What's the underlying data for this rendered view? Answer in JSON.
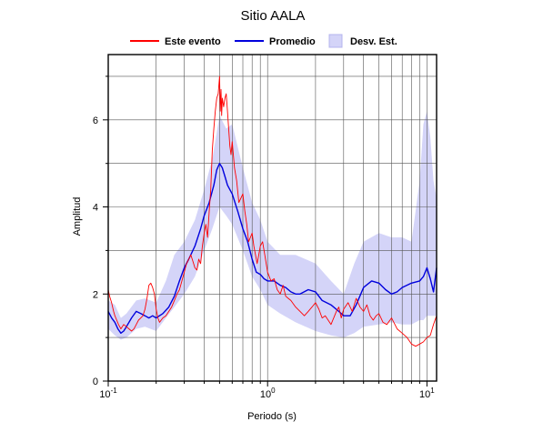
{
  "chart_data": {
    "type": "line",
    "title": "Sitio AALA",
    "xlabel": "Periodo (s)",
    "ylabel": "Amplitud",
    "x_scale": "log",
    "xlim": [
      0.1,
      11.5
    ],
    "ylim": [
      0,
      7.5
    ],
    "x_ticks": [
      {
        "value": 0.1,
        "base": "10",
        "exp": "-1"
      },
      {
        "value": 1,
        "base": "10",
        "exp": "0"
      },
      {
        "value": 10,
        "base": "10",
        "exp": "1"
      }
    ],
    "y_ticks": [
      0,
      2,
      4,
      6
    ],
    "grid": true,
    "legend_position": "top",
    "colors": {
      "este_evento": "#ff0000",
      "promedio": "#0000dd",
      "band_fill": "#d4d4f8",
      "band_edge": "#b4b4ee",
      "grid": "#555555"
    },
    "legend": [
      {
        "label": "Este evento",
        "kind": "line",
        "color": "#ff0000"
      },
      {
        "label": "Promedio",
        "kind": "line",
        "color": "#0000dd"
      },
      {
        "label": "Desv. Est.",
        "kind": "patch",
        "color": "#d4d4f8"
      }
    ],
    "band": {
      "name": "Desv. Est.",
      "x": [
        0.1,
        0.11,
        0.12,
        0.13,
        0.15,
        0.17,
        0.2,
        0.23,
        0.26,
        0.3,
        0.35,
        0.4,
        0.45,
        0.5,
        0.55,
        0.6,
        0.7,
        0.8,
        0.9,
        1.0,
        1.2,
        1.5,
        2.0,
        2.5,
        3.0,
        3.5,
        4.0,
        5.0,
        6.0,
        7.0,
        8.0,
        9.0,
        9.5,
        10.0,
        10.5,
        11.0,
        11.5
      ],
      "upper": [
        1.85,
        1.75,
        1.45,
        1.55,
        1.85,
        1.9,
        1.8,
        2.3,
        2.9,
        3.2,
        3.7,
        4.4,
        5.1,
        6.1,
        5.8,
        5.9,
        4.9,
        4.1,
        3.7,
        3.2,
        2.9,
        2.9,
        2.7,
        2.3,
        2.0,
        2.7,
        3.2,
        3.4,
        3.3,
        3.3,
        3.2,
        4.6,
        5.9,
        6.2,
        5.6,
        4.6,
        4.2
      ],
      "lower": [
        1.2,
        1.05,
        0.95,
        1.0,
        1.2,
        1.25,
        1.15,
        1.45,
        1.7,
        2.0,
        2.4,
        3.0,
        3.5,
        4.0,
        3.8,
        3.6,
        3.0,
        2.4,
        2.1,
        1.75,
        1.55,
        1.35,
        1.15,
        1.05,
        1.0,
        1.1,
        1.25,
        1.3,
        1.35,
        1.3,
        1.3,
        1.4,
        1.4,
        1.5,
        1.5,
        1.5,
        1.5
      ]
    },
    "series": [
      {
        "name": "Promedio",
        "color": "#0000dd",
        "x": [
          0.1,
          0.105,
          0.11,
          0.115,
          0.12,
          0.125,
          0.13,
          0.14,
          0.15,
          0.16,
          0.17,
          0.18,
          0.19,
          0.2,
          0.22,
          0.24,
          0.26,
          0.28,
          0.3,
          0.32,
          0.35,
          0.38,
          0.4,
          0.43,
          0.46,
          0.48,
          0.5,
          0.52,
          0.54,
          0.56,
          0.58,
          0.6,
          0.65,
          0.7,
          0.75,
          0.8,
          0.85,
          0.9,
          0.95,
          1.0,
          1.1,
          1.2,
          1.3,
          1.4,
          1.5,
          1.6,
          1.8,
          2.0,
          2.2,
          2.5,
          2.8,
          3.0,
          3.3,
          3.6,
          4.0,
          4.5,
          5.0,
          5.5,
          6.0,
          6.5,
          7.0,
          8.0,
          9.0,
          9.5,
          10.0,
          10.5,
          11.0,
          11.5
        ],
        "y": [
          1.6,
          1.45,
          1.35,
          1.2,
          1.1,
          1.15,
          1.25,
          1.45,
          1.6,
          1.55,
          1.5,
          1.45,
          1.5,
          1.45,
          1.55,
          1.7,
          1.95,
          2.3,
          2.6,
          2.8,
          3.1,
          3.5,
          3.8,
          4.1,
          4.5,
          4.85,
          5.0,
          4.9,
          4.7,
          4.5,
          4.4,
          4.3,
          3.9,
          3.5,
          3.2,
          2.8,
          2.5,
          2.45,
          2.35,
          2.3,
          2.3,
          2.2,
          2.15,
          2.05,
          2.0,
          2.0,
          2.1,
          2.05,
          1.85,
          1.75,
          1.6,
          1.5,
          1.5,
          1.75,
          2.15,
          2.3,
          2.25,
          2.1,
          2.0,
          2.05,
          2.15,
          2.25,
          2.3,
          2.4,
          2.6,
          2.35,
          2.05,
          2.6
        ]
      },
      {
        "name": "Este evento",
        "color": "#ff0000",
        "x": [
          0.1,
          0.102,
          0.105,
          0.108,
          0.11,
          0.113,
          0.116,
          0.12,
          0.125,
          0.13,
          0.135,
          0.14,
          0.145,
          0.15,
          0.155,
          0.16,
          0.165,
          0.17,
          0.175,
          0.18,
          0.185,
          0.19,
          0.195,
          0.2,
          0.205,
          0.21,
          0.22,
          0.23,
          0.24,
          0.25,
          0.26,
          0.27,
          0.28,
          0.29,
          0.3,
          0.31,
          0.32,
          0.33,
          0.34,
          0.35,
          0.36,
          0.37,
          0.38,
          0.39,
          0.4,
          0.41,
          0.42,
          0.43,
          0.44,
          0.45,
          0.46,
          0.47,
          0.48,
          0.49,
          0.5,
          0.505,
          0.51,
          0.515,
          0.52,
          0.53,
          0.54,
          0.55,
          0.56,
          0.57,
          0.58,
          0.59,
          0.6,
          0.62,
          0.64,
          0.66,
          0.68,
          0.7,
          0.72,
          0.74,
          0.76,
          0.78,
          0.8,
          0.82,
          0.84,
          0.86,
          0.88,
          0.9,
          0.93,
          0.96,
          1.0,
          1.05,
          1.1,
          1.15,
          1.2,
          1.25,
          1.3,
          1.35,
          1.4,
          1.5,
          1.6,
          1.7,
          1.8,
          1.9,
          2.0,
          2.1,
          2.2,
          2.3,
          2.4,
          2.5,
          2.6,
          2.7,
          2.8,
          2.9,
          3.0,
          3.2,
          3.4,
          3.6,
          3.8,
          4.0,
          4.2,
          4.4,
          4.6,
          4.8,
          5.0,
          5.3,
          5.6,
          6.0,
          6.5,
          7.0,
          7.5,
          8.0,
          8.5,
          9.0,
          9.5,
          10.0,
          10.5,
          11.0,
          11.5
        ],
        "y": [
          2.1,
          1.95,
          1.8,
          1.6,
          1.5,
          1.4,
          1.3,
          1.2,
          1.3,
          1.25,
          1.2,
          1.15,
          1.2,
          1.3,
          1.4,
          1.45,
          1.5,
          1.65,
          1.9,
          2.2,
          2.25,
          2.15,
          2.0,
          1.65,
          1.45,
          1.35,
          1.45,
          1.5,
          1.6,
          1.7,
          1.85,
          2.0,
          2.1,
          2.3,
          2.5,
          2.7,
          2.8,
          2.9,
          2.75,
          2.6,
          2.55,
          2.8,
          2.7,
          3.1,
          3.4,
          3.6,
          3.3,
          3.9,
          4.4,
          5.3,
          5.8,
          6.2,
          6.5,
          6.6,
          7.0,
          6.2,
          6.7,
          6.1,
          6.5,
          6.3,
          6.5,
          6.6,
          6.2,
          5.8,
          5.4,
          5.2,
          5.5,
          4.9,
          4.6,
          4.1,
          4.2,
          4.3,
          3.9,
          3.6,
          3.2,
          3.3,
          3.4,
          3.1,
          2.9,
          2.7,
          2.9,
          3.1,
          3.2,
          2.9,
          2.5,
          2.3,
          2.35,
          2.1,
          2.0,
          2.2,
          1.95,
          1.9,
          1.85,
          1.7,
          1.6,
          1.5,
          1.6,
          1.7,
          1.8,
          1.65,
          1.45,
          1.5,
          1.4,
          1.3,
          1.45,
          1.6,
          1.7,
          1.45,
          1.65,
          1.8,
          1.6,
          1.9,
          1.7,
          1.6,
          1.75,
          1.5,
          1.4,
          1.5,
          1.55,
          1.35,
          1.3,
          1.45,
          1.2,
          1.1,
          1.0,
          0.85,
          0.8,
          0.85,
          0.9,
          1.0,
          1.05,
          1.3,
          1.5
        ]
      }
    ]
  }
}
